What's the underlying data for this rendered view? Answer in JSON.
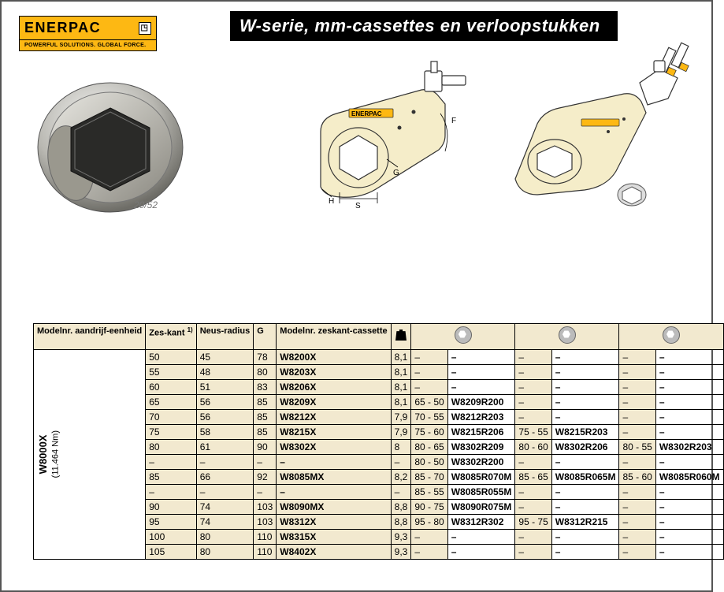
{
  "logo": {
    "brand": "ENERPAC",
    "tagline": "POWERFUL SOLUTIONS. GLOBAL FORCE."
  },
  "title": "W-serie, mm-cassettes en verloopstukken",
  "table": {
    "headers": {
      "model_drive": "Modelnr. aandrijf-eenheid",
      "zeskant": "Zes-kant",
      "zeskant_sup": "1)",
      "neus": "Neus-radius",
      "g": "G",
      "model_cass": "Modelnr. zeskant-cassette"
    },
    "drive_model": "W8000X",
    "drive_sub": "(11.464 Nm)",
    "rows": [
      {
        "zk": "50",
        "nr": "45",
        "g": "78",
        "mc": "W8200X",
        "w": "8,1",
        "r1": "–",
        "p1": "–",
        "r2": "–",
        "p2": "–",
        "r3": "–",
        "p3": "–"
      },
      {
        "zk": "55",
        "nr": "48",
        "g": "80",
        "mc": "W8203X",
        "w": "8,1",
        "r1": "–",
        "p1": "–",
        "r2": "–",
        "p2": "–",
        "r3": "–",
        "p3": "–"
      },
      {
        "zk": "60",
        "nr": "51",
        "g": "83",
        "mc": "W8206X",
        "w": "8,1",
        "r1": "–",
        "p1": "–",
        "r2": "–",
        "p2": "–",
        "r3": "–",
        "p3": "–"
      },
      {
        "zk": "65",
        "nr": "56",
        "g": "85",
        "mc": "W8209X",
        "w": "8,1",
        "r1": "65 - 50",
        "p1": "W8209R200",
        "r2": "–",
        "p2": "–",
        "r3": "–",
        "p3": "–"
      },
      {
        "zk": "70",
        "nr": "56",
        "g": "85",
        "mc": "W8212X",
        "w": "7,9",
        "r1": "70 - 55",
        "p1": "W8212R203",
        "r2": "–",
        "p2": "–",
        "r3": "–",
        "p3": "–"
      },
      {
        "zk": "75",
        "nr": "58",
        "g": "85",
        "mc": "W8215X",
        "w": "7,9",
        "r1": "75 - 60",
        "p1": "W8215R206",
        "r2": "75 - 55",
        "p2": "W8215R203",
        "r3": "–",
        "p3": "–"
      },
      {
        "zk": "80",
        "nr": "61",
        "g": "90",
        "mc": "W8302X",
        "w": "8",
        "r1": "80 - 65",
        "p1": "W8302R209",
        "r2": "80 - 60",
        "p2": "W8302R206",
        "r3": "80 - 55",
        "p3": "W8302R203"
      },
      {
        "zk": "–",
        "nr": "–",
        "g": "–",
        "mc": "–",
        "w": "–",
        "r1": "80 - 50",
        "p1": "W8302R200",
        "r2": "–",
        "p2": "–",
        "r3": "–",
        "p3": "–"
      },
      {
        "zk": "85",
        "nr": "66",
        "g": "92",
        "mc": "W8085MX",
        "w": "8,2",
        "r1": "85 - 70",
        "p1": "W8085R070M",
        "r2": "85 - 65",
        "p2": "W8085R065M",
        "r3": "85 - 60",
        "p3": "W8085R060M"
      },
      {
        "zk": "–",
        "nr": "–",
        "g": "–",
        "mc": "–",
        "w": "–",
        "r1": "85 - 55",
        "p1": "W8085R055M",
        "r2": "–",
        "p2": "–",
        "r3": "–",
        "p3": "–"
      },
      {
        "zk": "90",
        "nr": "74",
        "g": "103",
        "mc": "W8090MX",
        "w": "8,8",
        "r1": "90 - 75",
        "p1": "W8090R075M",
        "r2": "–",
        "p2": "–",
        "r3": "–",
        "p3": "–"
      },
      {
        "zk": "95",
        "nr": "74",
        "g": "103",
        "mc": "W8312X",
        "w": "8,8",
        "r1": "95 - 80",
        "p1": "W8312R302",
        "r2": "95 - 75",
        "p2": "W8312R215",
        "r3": "–",
        "p3": "–"
      },
      {
        "zk": "100",
        "nr": "80",
        "g": "110",
        "mc": "W8315X",
        "w": "9,3",
        "r1": "–",
        "p1": "–",
        "r2": "–",
        "p2": "–",
        "r3": "–",
        "p3": "–"
      },
      {
        "zk": "105",
        "nr": "80",
        "g": "110",
        "mc": "W8402X",
        "w": "9,3",
        "r1": "–",
        "p1": "–",
        "r2": "–",
        "p2": "–",
        "r3": "–",
        "p3": "–"
      }
    ]
  },
  "diagram_labels": {
    "h": "H",
    "s": "S",
    "g": "G",
    "f": "F",
    "brand": "ENERPAC"
  },
  "colors": {
    "header_bg": "#f2e9cf",
    "accent": "#fdb813",
    "border": "#000000",
    "tool_body": "#f5edc9",
    "tool_stroke": "#333333"
  }
}
